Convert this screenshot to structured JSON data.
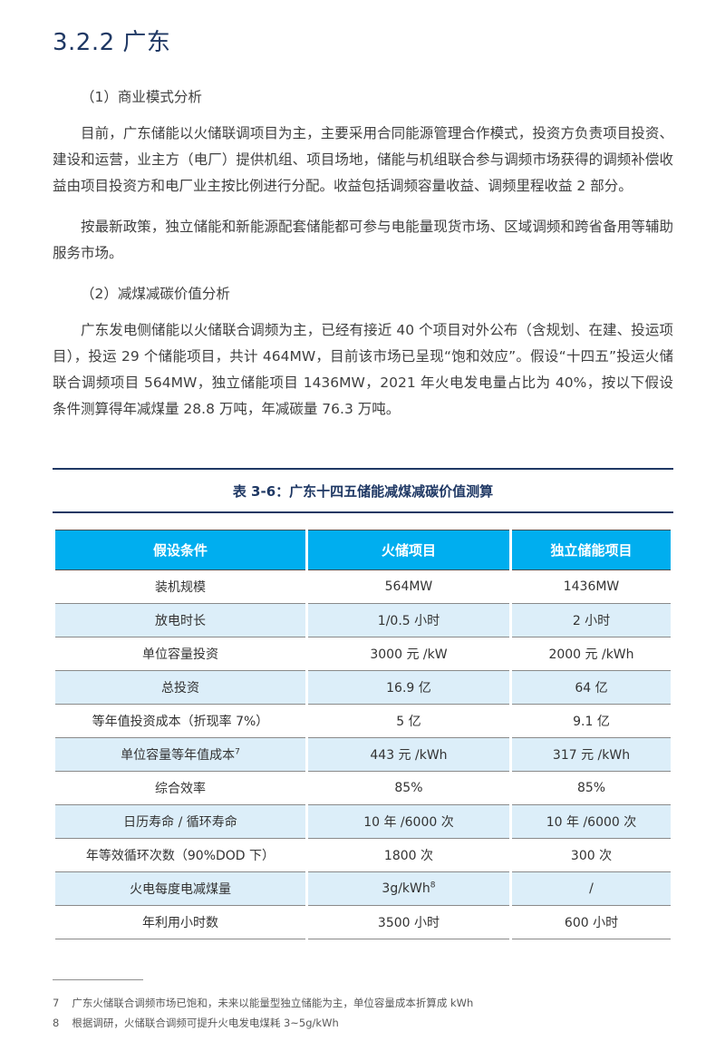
{
  "heading": "3.2.2 广东",
  "subheads": [
    "（1）商业模式分析",
    "（2）减煤减碳价值分析"
  ],
  "paragraphs": [
    "目前，广东储能以火储联调项目为主，主要采用合同能源管理合作模式，投资方负责项目投资、建设和运营，业主方（电厂）提供机组、项目场地，储能与机组联合参与调频市场获得的调频补偿收益由项目投资方和电厂业主按比例进行分配。收益包括调频容量收益、调频里程收益 2 部分。",
    "按最新政策，独立储能和新能源配套储能都可参与电能量现货市场、区域调频和跨省备用等辅助服务市场。",
    "广东发电侧储能以火储联合调频为主，已经有接近 40 个项目对外公布（含规划、在建、投运项目），投运 29 个储能项目，共计 464MW，目前该市场已呈现“饱和效应”。假设“十四五”投运火储联合调频项目 564MW，独立储能项目 1436MW，2021 年火电发电量占比为 40%，按以下假设条件测算得年减煤量 28.8 万吨，年减碳量 76.3 万吨。"
  ],
  "colors": {
    "accent_navy": "#1F3864",
    "table_header_blue": "#00AEEF",
    "table_row_blue": "#DCEEF9"
  },
  "table": {
    "caption": "表 3-6：广东十四五储能减煤减碳价值测算",
    "headers": [
      "假设条件",
      "火储项目",
      "独立储能项目"
    ],
    "rows": [
      {
        "label": "装机规模",
        "label_sup": "",
        "fire": "564MW",
        "fire_sup": "",
        "indep": "1436MW",
        "indep_sup": ""
      },
      {
        "label": "放电时长",
        "label_sup": "",
        "fire": "1/0.5 小时",
        "fire_sup": "",
        "indep": "2 小时",
        "indep_sup": ""
      },
      {
        "label": "单位容量投资",
        "label_sup": "",
        "fire": "3000 元 /kW",
        "fire_sup": "",
        "indep": "2000 元 /kWh",
        "indep_sup": ""
      },
      {
        "label": "总投资",
        "label_sup": "",
        "fire": "16.9 亿",
        "fire_sup": "",
        "indep": "64 亿",
        "indep_sup": ""
      },
      {
        "label": "等年值投资成本（折现率 7%）",
        "label_sup": "",
        "fire": "5 亿",
        "fire_sup": "",
        "indep": "9.1 亿",
        "indep_sup": ""
      },
      {
        "label": "单位容量等年值成本",
        "label_sup": "7",
        "fire": "443 元 /kWh",
        "fire_sup": "",
        "indep": "317 元 /kWh",
        "indep_sup": ""
      },
      {
        "label": "综合效率",
        "label_sup": "",
        "fire": "85%",
        "fire_sup": "",
        "indep": "85%",
        "indep_sup": ""
      },
      {
        "label": "日历寿命 / 循环寿命",
        "label_sup": "",
        "fire": "10 年 /6000 次",
        "fire_sup": "",
        "indep": "10 年 /6000 次",
        "indep_sup": ""
      },
      {
        "label": "年等效循环次数（90%DOD 下）",
        "label_sup": "",
        "fire": "1800 次",
        "fire_sup": "",
        "indep": "300 次",
        "indep_sup": ""
      },
      {
        "label": "火电每度电减煤量",
        "label_sup": "",
        "fire": "3g/kWh",
        "fire_sup": "8",
        "indep": "/",
        "indep_sup": ""
      },
      {
        "label": "年利用小时数",
        "label_sup": "",
        "fire": "3500 小时",
        "fire_sup": "",
        "indep": "600 小时",
        "indep_sup": ""
      }
    ]
  },
  "footnotes": [
    {
      "marker": "7",
      "text": "广东火储联合调频市场已饱和，未来以能量型独立储能为主，单位容量成本折算成 kWh"
    },
    {
      "marker": "8",
      "text": "根据调研，火储联合调频可提升火电发电煤耗 3~5g/kWh"
    }
  ]
}
